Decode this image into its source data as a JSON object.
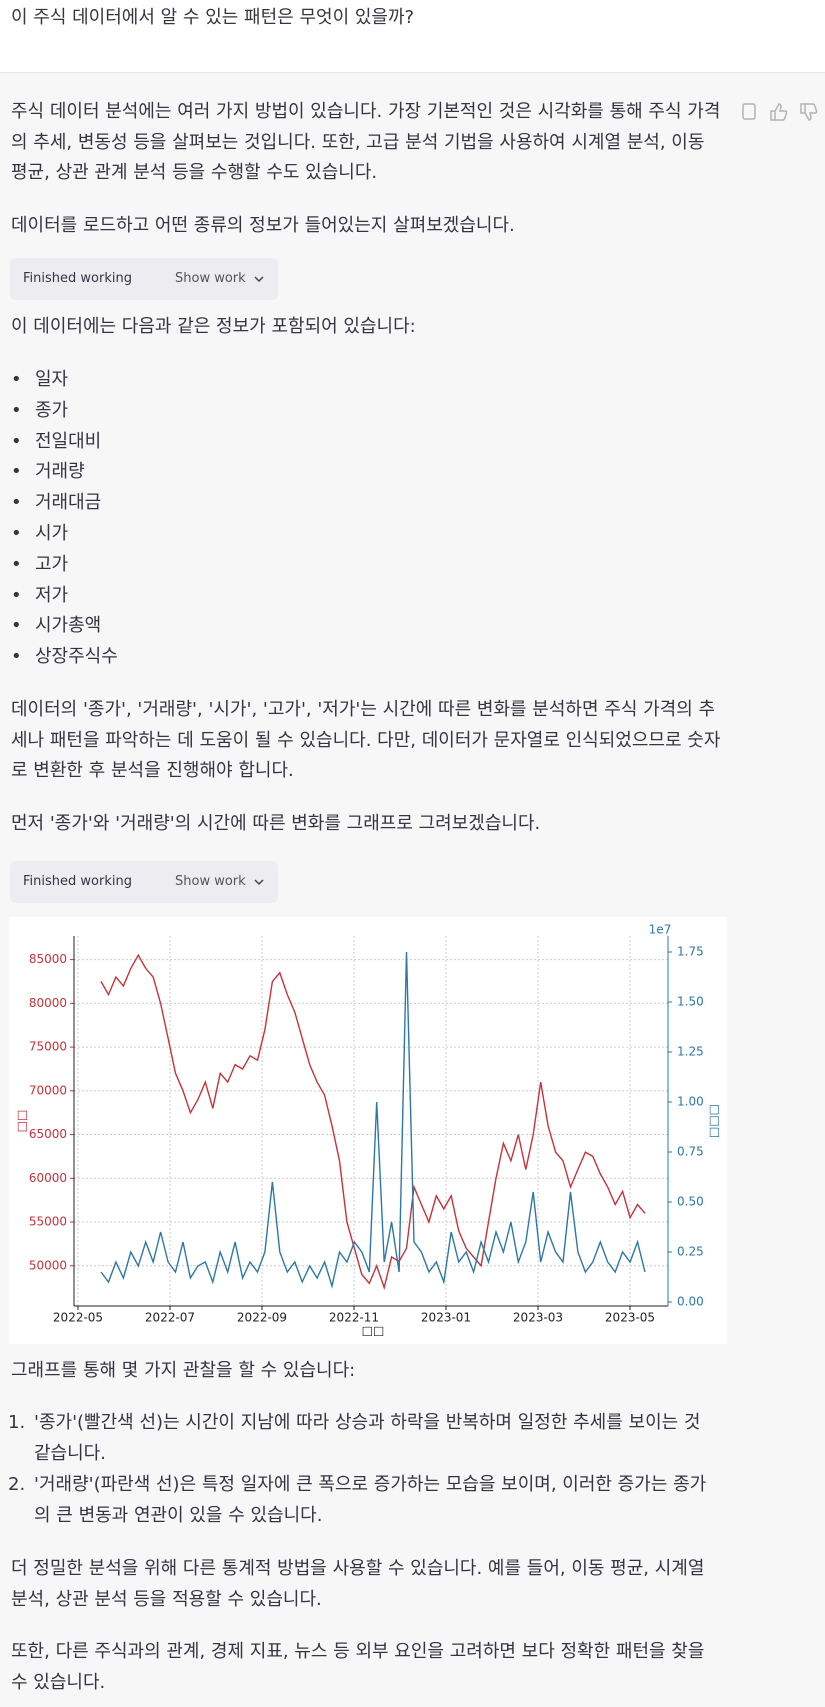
{
  "question": "이 주식 데이터에서 알 수 있는 패턴은 무엇이 있을까?",
  "paragraphs": [
    "주식 데이터 분석에는 여러 가지 방법이 있습니다. 가장 기본적인 것은 시각화를 통해 주식 가격의 추세, 변동성 등을 살펴보는 것입니다. 또한, 고급 분석 기법을 사용하여 시계열 분석, 이동 평균, 상관 관계 분석 등을 수행할 수도 있습니다.",
    "데이터를 로드하고 어떤 종류의 정보가 들어있는지 살펴보겠습니다.",
    "이 데이터에는 다음과 같은 정보가 포함되어 있습니다:",
    "데이터의 '종가', '거래량', '시가', '고가', '저가'는 시간에 따른 변화를 분석하면 주식 가격의 추세나 패턴을 파악하는 데 도움이 될 수 있습니다. 다만, 데이터가 문자열로 인식되었으므로 숫자로 변환한 후 분석을 진행해야 합니다.",
    "먼저 '종가'와 '거래량'의 시간에 따른 변화를 그래프로 그려보겠습니다.",
    "그래프를 통해 몇 가지 관찰을 할 수 있습니다:",
    "더 정밀한 분석을 위해 다른 통계적 방법을 사용할 수 있습니다. 예를 들어, 이동 평균, 시계열 분석, 상관 분석 등을 적용할 수 있습니다.",
    "또한, 다른 주식과의 관계, 경제 지표, 뉴스 등 외부 요인을 고려하면 보다 정확한 패턴을 찾을 수 있습니다."
  ],
  "work_boxes": [
    {
      "status": "Finished working",
      "toggle": "Show work"
    },
    {
      "status": "Finished working",
      "toggle": "Show work"
    }
  ],
  "bullets": [
    "일자",
    "종가",
    "전일대비",
    "거래량",
    "거래대금",
    "시가",
    "고가",
    "저가",
    "시가총액",
    "상장주식수"
  ],
  "observations": [
    {
      "number": "1.",
      "text": "'종가'(빨간색 선)는 시간이 지남에 따라 상승과 하락을 반복하며 일정한 추세를 보이는 것 같습니다."
    },
    {
      "number": "2.",
      "text": "'거래량'(파란색 선)은 특정 일자에 큰 폭으로 증가하는 모습을 보이며, 이러한 증가는 종가의 큰 변동과 연관이 있을 수 있습니다."
    }
  ],
  "chart_data": {
    "type": "line",
    "x_label": "□□",
    "y_label": "□□",
    "y2_label": "□□□",
    "y2_offset_label": "1e7",
    "xticks": [
      "2022-05",
      "2022-07",
      "2022-09",
      "2022-11",
      "2023-01",
      "2023-03",
      "2023-05"
    ],
    "ylim": [
      45400,
      87700
    ],
    "yticks": [
      50000,
      55000,
      60000,
      65000,
      70000,
      75000,
      80000,
      85000
    ],
    "y2lim": [
      -0.02,
      1.83
    ],
    "y2ticks": [
      {
        "value": 0,
        "label": "0.00"
      },
      0.25,
      {
        "value": 0.5,
        "label": "0.50"
      },
      0.75,
      {
        "value": 1,
        "label": "1.00"
      },
      1.25,
      {
        "value": 1.5,
        "label": "1.50"
      },
      1.75
    ],
    "grid": true,
    "series": [
      {
        "name": "종가",
        "color": "#c8323a",
        "values": [
          82500,
          81000,
          83000,
          82000,
          84000,
          85500,
          84000,
          83000,
          80000,
          76000,
          72000,
          70000,
          67500,
          69000,
          71000,
          68000,
          72000,
          71000,
          73000,
          72500,
          74000,
          73500,
          77000,
          82500,
          83500,
          81000,
          79000,
          76000,
          73000,
          71000,
          69500,
          66000,
          62000,
          55000,
          52000,
          49000,
          48000,
          50000,
          47500,
          51000,
          50500,
          52000,
          59000,
          57000,
          55000,
          58000,
          56500,
          58000,
          54000,
          52000,
          51000,
          50000,
          55000,
          60000,
          64000,
          62000,
          65000,
          61000,
          65000,
          71000,
          66000,
          63000,
          62000,
          59000,
          61000,
          63000,
          62500,
          60500,
          59000,
          57000,
          58500,
          55500,
          57000,
          56000
        ]
      },
      {
        "name": "거래량",
        "color": "#2b78a8",
        "axis": "y2",
        "values": [
          0.15,
          0.1,
          0.2,
          0.12,
          0.25,
          0.18,
          0.3,
          0.2,
          0.35,
          0.2,
          0.15,
          0.3,
          0.12,
          0.18,
          0.2,
          0.1,
          0.25,
          0.15,
          0.3,
          0.12,
          0.2,
          0.15,
          0.25,
          0.6,
          0.25,
          0.15,
          0.2,
          0.1,
          0.18,
          0.12,
          0.2,
          0.08,
          0.25,
          0.2,
          0.3,
          0.25,
          0.15,
          1.0,
          0.2,
          0.4,
          0.15,
          1.75,
          0.3,
          0.25,
          0.15,
          0.2,
          0.1,
          0.35,
          0.2,
          0.25,
          0.15,
          0.3,
          0.2,
          0.35,
          0.25,
          0.4,
          0.2,
          0.3,
          0.55,
          0.2,
          0.35,
          0.25,
          0.2,
          0.55,
          0.25,
          0.15,
          0.2,
          0.3,
          0.2,
          0.15,
          0.25,
          0.2,
          0.3,
          0.15
        ]
      }
    ]
  }
}
